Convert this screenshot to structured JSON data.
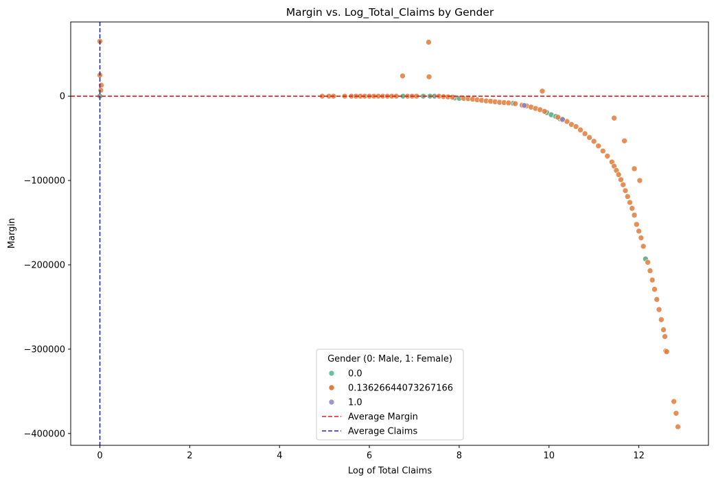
{
  "chart_data": {
    "type": "scatter",
    "title": "Margin vs. Log_Total_Claims by Gender",
    "xlabel": "Log of Total Claims",
    "ylabel": "Margin",
    "xlim": [
      -0.65,
      13.55
    ],
    "ylim": [
      -414000,
      88000
    ],
    "xticks": [
      0,
      2,
      4,
      6,
      8,
      10,
      12
    ],
    "yticks": [
      0,
      -100000,
      -200000,
      -300000,
      -400000
    ],
    "xtick_labels": [
      "0",
      "2",
      "4",
      "6",
      "8",
      "10",
      "12"
    ],
    "ytick_labels": [
      "0",
      "−100000",
      "−200000",
      "−300000",
      "−400000"
    ],
    "grid": false,
    "legend": {
      "title": "Gender (0: Male, 1: Female)",
      "placement": "lower center",
      "entries": [
        {
          "label": "0.0",
          "kind": "marker",
          "color": "#66c2a5"
        },
        {
          "label": "0.13626644073267166",
          "kind": "marker",
          "color": "#e07b39"
        },
        {
          "label": "1.0",
          "kind": "marker",
          "color": "#9e9ac8"
        },
        {
          "label": "Average Margin",
          "kind": "line",
          "color": "#e31a1c"
        },
        {
          "label": "Average Claims",
          "kind": "line",
          "color": "#1f1fdd"
        }
      ]
    },
    "reference_lines": {
      "average_margin_y": 0,
      "average_claims_x": 0
    },
    "series": [
      {
        "name": "0.0",
        "color": "#5aa57e",
        "points": [
          [
            0,
            0
          ],
          [
            6.75,
            0
          ],
          [
            7.2,
            0
          ],
          [
            7.35,
            0
          ],
          [
            7.45,
            0
          ],
          [
            7.9,
            -2000
          ],
          [
            8.0,
            -2500
          ],
          [
            9.2,
            -8500
          ],
          [
            9.95,
            -19500
          ],
          [
            10.05,
            -22000
          ],
          [
            10.15,
            -24000
          ],
          [
            10.25,
            -27000
          ],
          [
            12.15,
            -193000
          ]
        ]
      },
      {
        "name": "0.13626644073267166",
        "color": "#e07b39",
        "points": [
          [
            0,
            65000
          ],
          [
            0,
            25000
          ],
          [
            0.03,
            13000
          ],
          [
            0.02,
            7000
          ],
          [
            6.74,
            24000
          ],
          [
            7.32,
            64000
          ],
          [
            7.33,
            23000
          ],
          [
            9.85,
            6000
          ],
          [
            11.45,
            -26000
          ],
          [
            11.68,
            -53000
          ],
          [
            11.9,
            -86000
          ],
          [
            12.02,
            -100000
          ],
          [
            12.78,
            -362000
          ],
          [
            12.83,
            -376000
          ],
          [
            12.87,
            -392000
          ],
          [
            4.95,
            0
          ],
          [
            5.1,
            0
          ],
          [
            5.2,
            0
          ],
          [
            5.45,
            0
          ],
          [
            5.6,
            0
          ],
          [
            5.7,
            0
          ],
          [
            5.8,
            0
          ],
          [
            5.9,
            0
          ],
          [
            6.0,
            0
          ],
          [
            6.1,
            0
          ],
          [
            6.2,
            0
          ],
          [
            6.3,
            0
          ],
          [
            6.4,
            0
          ],
          [
            6.5,
            0
          ],
          [
            6.6,
            0
          ],
          [
            6.85,
            0
          ],
          [
            6.95,
            0
          ],
          [
            7.05,
            0
          ],
          [
            7.55,
            0
          ],
          [
            7.65,
            -500
          ],
          [
            7.75,
            -800
          ],
          [
            7.85,
            -1200
          ],
          [
            8.1,
            -2600
          ],
          [
            8.2,
            -3000
          ],
          [
            8.3,
            -3600
          ],
          [
            8.4,
            -4200
          ],
          [
            8.5,
            -4900
          ],
          [
            8.6,
            -5600
          ],
          [
            8.7,
            -6000
          ],
          [
            8.8,
            -6600
          ],
          [
            8.9,
            -7300
          ],
          [
            9.0,
            -7600
          ],
          [
            9.1,
            -8000
          ],
          [
            9.25,
            -8900
          ],
          [
            9.4,
            -10700
          ],
          [
            9.5,
            -11500
          ],
          [
            9.6,
            -13000
          ],
          [
            9.7,
            -14600
          ],
          [
            9.8,
            -16000
          ],
          [
            9.9,
            -18000
          ],
          [
            10.2,
            -25000
          ],
          [
            10.3,
            -28000
          ],
          [
            10.4,
            -30000
          ],
          [
            10.5,
            -33500
          ],
          [
            10.6,
            -36000
          ],
          [
            10.7,
            -40000
          ],
          [
            10.8,
            -44500
          ],
          [
            10.9,
            -49000
          ],
          [
            11.0,
            -53500
          ],
          [
            11.1,
            -59000
          ],
          [
            11.2,
            -65000
          ],
          [
            11.3,
            -71000
          ],
          [
            11.4,
            -78000
          ],
          [
            11.45,
            -83000
          ],
          [
            11.5,
            -88000
          ],
          [
            11.55,
            -93000
          ],
          [
            11.6,
            -99000
          ],
          [
            11.65,
            -105000
          ],
          [
            11.7,
            -112000
          ],
          [
            11.75,
            -119000
          ],
          [
            11.8,
            -126000
          ],
          [
            11.85,
            -133000
          ],
          [
            11.9,
            -141000
          ],
          [
            11.95,
            -152000
          ],
          [
            12.0,
            -160000
          ],
          [
            12.05,
            -168000
          ],
          [
            12.1,
            -178000
          ],
          [
            12.2,
            -197000
          ],
          [
            12.25,
            -207000
          ],
          [
            12.3,
            -218000
          ],
          [
            12.35,
            -229000
          ],
          [
            12.4,
            -241000
          ],
          [
            12.45,
            -253000
          ],
          [
            12.5,
            -265000
          ],
          [
            12.55,
            -277000
          ],
          [
            12.58,
            -285000
          ],
          [
            12.6,
            -302000
          ],
          [
            12.62,
            -303000
          ]
        ]
      },
      {
        "name": "1.0",
        "color": "#8c7fb8",
        "points": [
          [
            9.45,
            -11000
          ],
          [
            10.3,
            -27500
          ]
        ]
      }
    ]
  }
}
